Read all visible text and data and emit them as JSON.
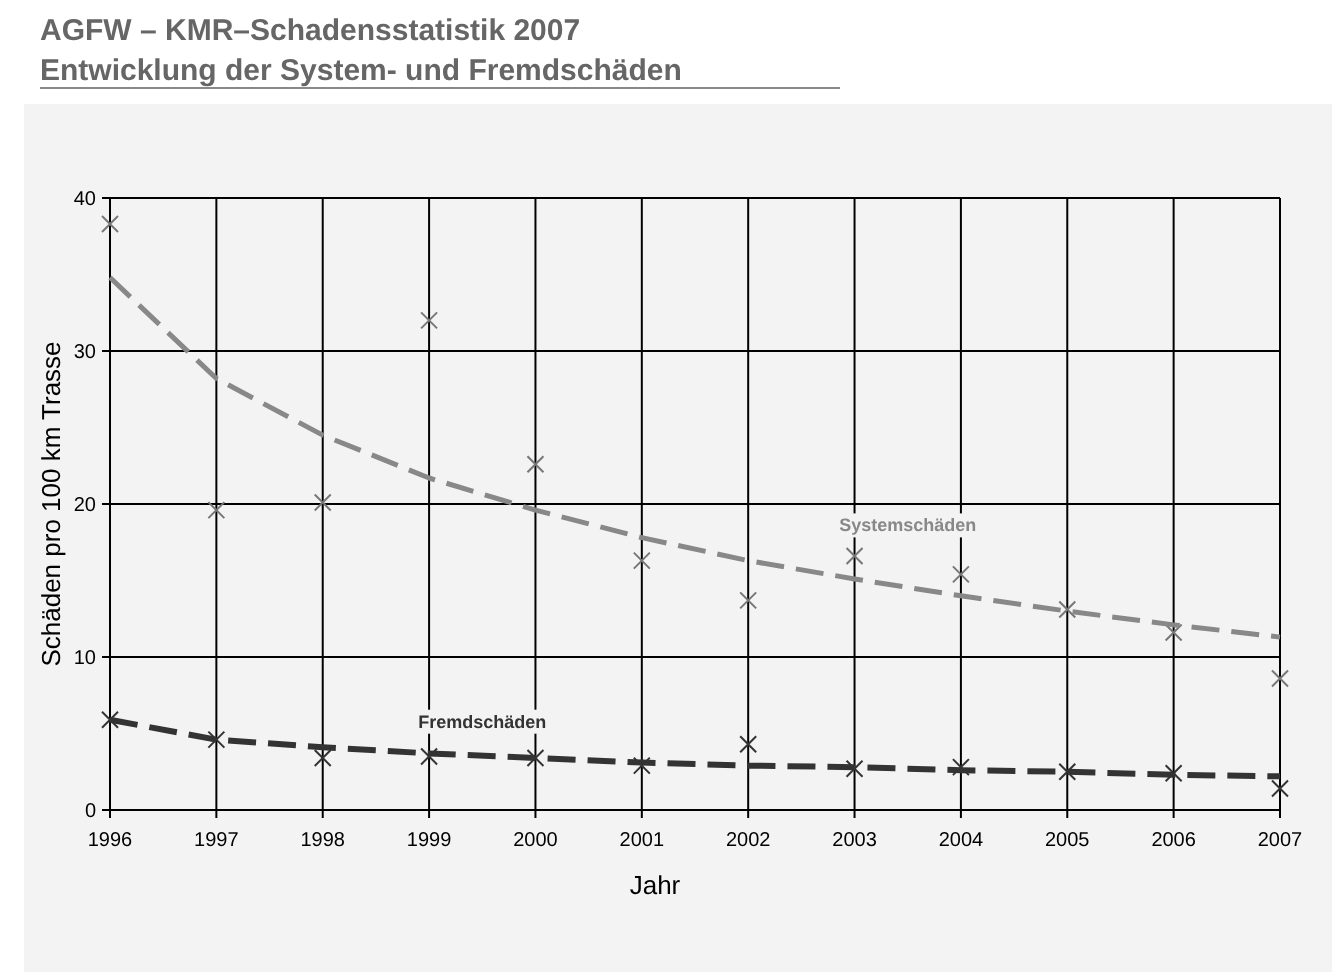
{
  "chart_data": {
    "type": "scatter",
    "title": "AGFW – KMR–Schadensstatistik 2007",
    "subtitle": "Entwicklung der System- und Fremdschäden",
    "xlabel": "Jahr",
    "ylabel": "Schäden pro 100 km Trasse",
    "x": [
      1996,
      1997,
      1998,
      1999,
      2000,
      2001,
      2002,
      2003,
      2004,
      2005,
      2006,
      2007
    ],
    "xlim": [
      1996,
      2007
    ],
    "xticks": [
      1996,
      1997,
      1998,
      1999,
      2000,
      2001,
      2002,
      2003,
      2004,
      2005,
      2006,
      2007
    ],
    "ylim": [
      0,
      40
    ],
    "yticks": [
      0,
      10,
      20,
      30,
      40
    ],
    "grid": true,
    "marker": "cross",
    "series": [
      {
        "color": "#777777",
        "values": [
          38.3,
          19.6,
          20.1,
          32.0,
          22.6,
          16.3,
          13.7,
          16.6,
          15.4,
          13.1,
          11.6,
          8.6
        ]
      },
      {
        "color": "#333333",
        "values": [
          5.9,
          4.6,
          3.4,
          3.5,
          3.4,
          2.9,
          4.3,
          2.7,
          2.8,
          2.5,
          2.4,
          1.4
        ]
      },
      {
        "type": "line",
        "name": "Systemschäden",
        "line_style": "dashed",
        "marker": "none",
        "color": "#888888",
        "values": [
          34.8,
          28.2,
          24.5,
          21.7,
          19.6,
          17.8,
          16.3,
          15.1,
          14.0,
          13.0,
          12.1,
          11.3
        ]
      },
      {
        "type": "line",
        "name": "Fremdschäden",
        "line_style": "dashed",
        "marker": "none",
        "color": "#333333",
        "values": [
          5.9,
          4.6,
          4.1,
          3.7,
          3.4,
          3.1,
          2.9,
          2.8,
          2.6,
          2.5,
          2.3,
          2.2
        ]
      }
    ]
  }
}
